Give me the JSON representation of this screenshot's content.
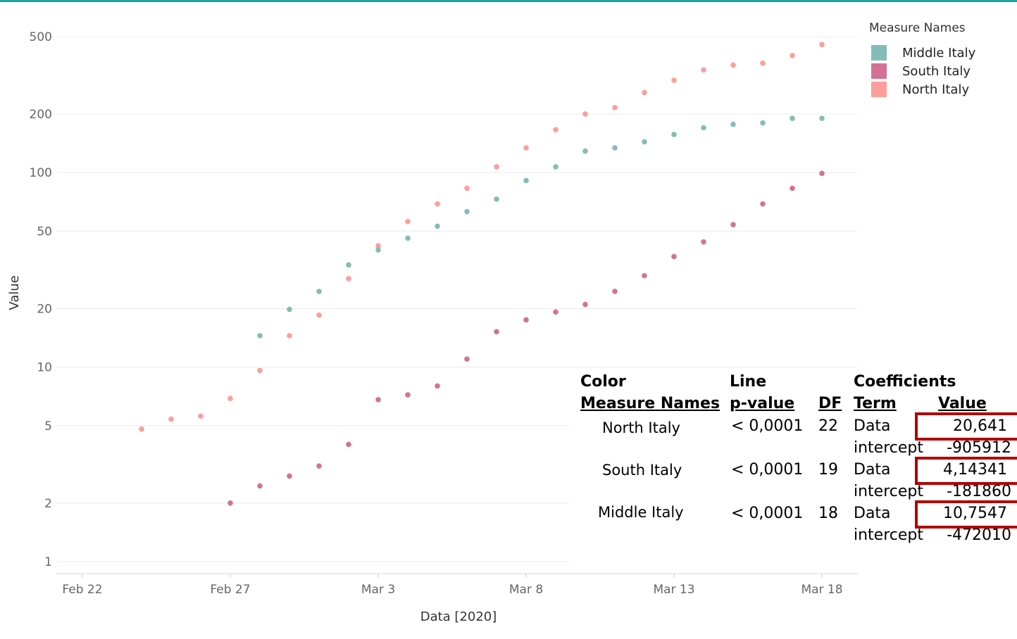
{
  "chart_data": {
    "type": "scatter",
    "ylabel": "Value",
    "xlabel": "Data [2020]",
    "yscale": "log",
    "ylim": [
      1,
      500
    ],
    "xlim": [
      "2020-02-21",
      "2020-03-21"
    ],
    "grid": true,
    "y_ticks": [
      {
        "value": 1,
        "label": "1"
      },
      {
        "value": 2,
        "label": "2"
      },
      {
        "value": 5,
        "label": "5"
      },
      {
        "value": 10,
        "label": "10"
      },
      {
        "value": 20,
        "label": "20"
      },
      {
        "value": 50,
        "label": "50"
      },
      {
        "value": 100,
        "label": "100"
      },
      {
        "value": 200,
        "label": "200"
      },
      {
        "value": 500,
        "label": "500"
      }
    ],
    "x_ticks": [
      {
        "date": "2020-02-22",
        "label": "Feb 22"
      },
      {
        "date": "2020-02-27",
        "label": "Feb 27"
      },
      {
        "date": "2020-03-03",
        "label": "Mar 3"
      },
      {
        "date": "2020-03-08",
        "label": "Mar 8"
      },
      {
        "date": "2020-03-13",
        "label": "Mar 13"
      },
      {
        "date": "2020-03-18",
        "label": "Mar 18"
      }
    ],
    "legend": {
      "title": "Measure Names",
      "position": "top-right",
      "items": [
        {
          "label": "Middle Italy",
          "color": "#85bcb6"
        },
        {
          "label": "South Italy",
          "color": "#d37295"
        },
        {
          "label": "North Italy",
          "color": "#ff9d9a"
        }
      ]
    },
    "series": [
      {
        "name": "North Italy",
        "color": "#ff9d9a",
        "points": [
          [
            "2020-02-24",
            4.8
          ],
          [
            "2020-02-25",
            5.4
          ],
          [
            "2020-02-26",
            5.6
          ],
          [
            "2020-02-27",
            6.9
          ],
          [
            "2020-02-28",
            9.6
          ],
          [
            "2020-02-29",
            14.5
          ],
          [
            "2020-03-01",
            18.5
          ],
          [
            "2020-03-02",
            28.5
          ],
          [
            "2020-03-03",
            42
          ],
          [
            "2020-03-04",
            56
          ],
          [
            "2020-03-05",
            69
          ],
          [
            "2020-03-06",
            83
          ],
          [
            "2020-03-07",
            107
          ],
          [
            "2020-03-08",
            134
          ],
          [
            "2020-03-09",
            166
          ],
          [
            "2020-03-10",
            200
          ],
          [
            "2020-03-11",
            216
          ],
          [
            "2020-03-12",
            258
          ],
          [
            "2020-03-13",
            298
          ],
          [
            "2020-03-14",
            337
          ],
          [
            "2020-03-15",
            357
          ],
          [
            "2020-03-16",
            365
          ],
          [
            "2020-03-17",
            400
          ],
          [
            "2020-03-18",
            455
          ]
        ],
        "trend": {
          "slope": 20.641,
          "intercept": -905912
        }
      },
      {
        "name": "South Italy",
        "color": "#d37295",
        "points": [
          [
            "2020-02-27",
            2.0
          ],
          [
            "2020-02-28",
            2.45
          ],
          [
            "2020-02-29",
            2.75
          ],
          [
            "2020-03-01",
            3.1
          ],
          [
            "2020-03-02",
            4.0
          ],
          [
            "2020-03-03",
            6.8
          ],
          [
            "2020-03-04",
            7.2
          ],
          [
            "2020-03-05",
            8.0
          ],
          [
            "2020-03-06",
            11.0
          ],
          [
            "2020-03-07",
            15.2
          ],
          [
            "2020-03-08",
            17.5
          ],
          [
            "2020-03-09",
            19.2
          ],
          [
            "2020-03-10",
            21.0
          ],
          [
            "2020-03-11",
            24.5
          ],
          [
            "2020-03-12",
            29.5
          ],
          [
            "2020-03-13",
            37
          ],
          [
            "2020-03-14",
            44
          ],
          [
            "2020-03-15",
            54
          ],
          [
            "2020-03-16",
            69
          ],
          [
            "2020-03-17",
            83
          ],
          [
            "2020-03-18",
            99
          ]
        ],
        "trend": {
          "slope": 4.14341,
          "intercept": -181860
        }
      },
      {
        "name": "Middle Italy",
        "color": "#85bcb6",
        "points": [
          [
            "2020-02-28",
            14.5
          ],
          [
            "2020-02-29",
            19.8
          ],
          [
            "2020-03-01",
            24.5
          ],
          [
            "2020-03-02",
            33.5
          ],
          [
            "2020-03-03",
            40
          ],
          [
            "2020-03-04",
            46
          ],
          [
            "2020-03-05",
            53
          ],
          [
            "2020-03-06",
            63
          ],
          [
            "2020-03-07",
            73
          ],
          [
            "2020-03-08",
            91
          ],
          [
            "2020-03-09",
            107
          ],
          [
            "2020-03-10",
            129
          ],
          [
            "2020-03-11",
            134
          ],
          [
            "2020-03-12",
            144
          ],
          [
            "2020-03-13",
            157
          ],
          [
            "2020-03-14",
            170
          ],
          [
            "2020-03-15",
            177
          ],
          [
            "2020-03-16",
            180
          ],
          [
            "2020-03-17",
            190
          ],
          [
            "2020-03-18",
            190
          ]
        ],
        "trend": {
          "slope": 10.7547,
          "intercept": -472010
        }
      }
    ]
  },
  "stats_table": {
    "group_headers": {
      "color": "Color",
      "line": "Line",
      "coefficients": "Coefficients"
    },
    "columns": {
      "measure_names": "Measure Names",
      "p_value": "p-value",
      "df": "DF",
      "term": "Term",
      "value": "Value"
    },
    "rows": [
      {
        "name": "North Italy",
        "p_value": "< 0,0001",
        "df": "22",
        "term1": "Data",
        "value1": "20,641",
        "term2": "intercept",
        "value2": "-905912"
      },
      {
        "name": "South Italy",
        "p_value": "< 0,0001",
        "df": "19",
        "term1": "Data",
        "value1": "4,14341",
        "term2": "intercept",
        "value2": "-181860"
      },
      {
        "name": "Middle Italy",
        "p_value": "< 0,0001",
        "df": "18",
        "term1": "Data",
        "value1": "10,7547",
        "term2": "intercept",
        "value2": "-472010"
      }
    ]
  }
}
